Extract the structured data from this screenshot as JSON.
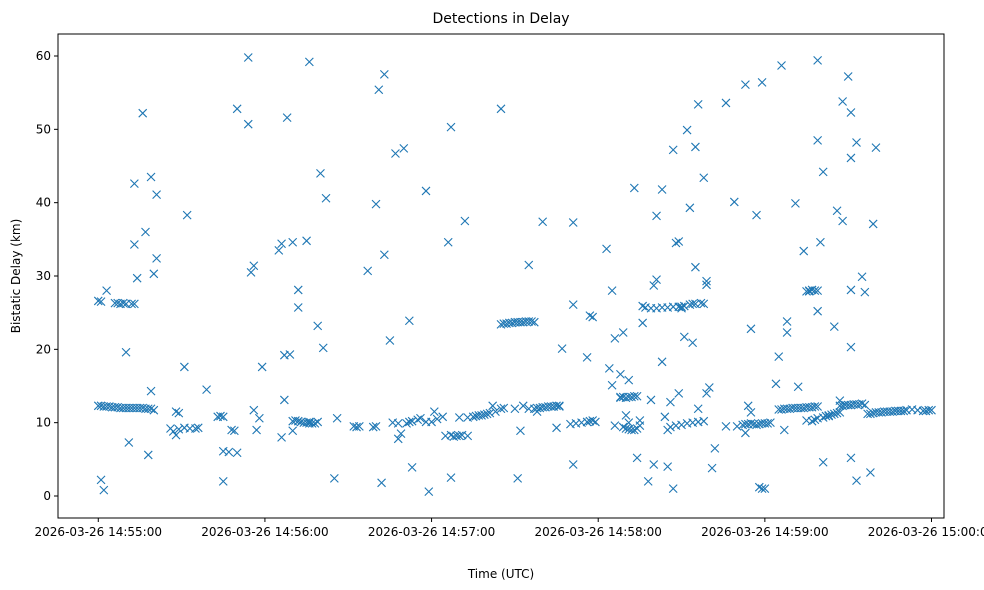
{
  "chart_data": {
    "type": "scatter",
    "title": "Detections in Delay",
    "xlabel": "Time (UTC)",
    "ylabel": "Bistatic Delay (km)",
    "marker": "x",
    "color": "#1f77b4",
    "grid": false,
    "x_unit": "seconds since 2026-03-26 14:55:00",
    "xlim": [
      -14.5,
      304.5
    ],
    "ylim": [
      -3,
      63
    ],
    "x_ticks": [
      {
        "value": 0,
        "label": "2026-03-26 14:55:00"
      },
      {
        "value": 60,
        "label": "2026-03-26 14:56:00"
      },
      {
        "value": 120,
        "label": "2026-03-26 14:57:00"
      },
      {
        "value": 180,
        "label": "2026-03-26 14:58:00"
      },
      {
        "value": 240,
        "label": "2026-03-26 14:59:00"
      },
      {
        "value": 300,
        "label": "2026-03-26 15:00:00"
      }
    ],
    "y_ticks": [
      {
        "value": 0,
        "label": "0"
      },
      {
        "value": 10,
        "label": "10"
      },
      {
        "value": 20,
        "label": "20"
      },
      {
        "value": 30,
        "label": "30"
      },
      {
        "value": 40,
        "label": "40"
      },
      {
        "value": 50,
        "label": "50"
      },
      {
        "value": 60,
        "label": "60"
      }
    ],
    "points": [
      [
        0,
        12.3
      ],
      [
        1,
        12.3
      ],
      [
        2,
        12.2
      ],
      [
        3,
        12.2
      ],
      [
        4,
        12.2
      ],
      [
        5,
        12.1
      ],
      [
        6,
        12.1
      ],
      [
        7,
        12.1
      ],
      [
        8,
        12.0
      ],
      [
        9,
        12.0
      ],
      [
        10,
        12.0
      ],
      [
        11,
        12.0
      ],
      [
        12,
        12.0
      ],
      [
        13,
        12.0
      ],
      [
        14,
        12.0
      ],
      [
        15,
        12.0
      ],
      [
        16,
        12.0
      ],
      [
        17,
        11.9
      ],
      [
        18,
        11.9
      ],
      [
        19,
        11.9
      ],
      [
        20,
        11.7
      ],
      [
        26,
        9.2
      ],
      [
        27,
        8.8
      ],
      [
        28,
        8.3
      ],
      [
        29,
        9.1
      ],
      [
        31,
        9.3
      ],
      [
        33,
        9.2
      ],
      [
        35,
        9.2
      ],
      [
        36,
        9.3
      ],
      [
        43,
        10.8
      ],
      [
        44,
        10.9
      ],
      [
        45,
        10.8
      ],
      [
        48,
        9.0
      ],
      [
        49,
        8.9
      ],
      [
        70,
        10.2
      ],
      [
        71,
        10.3
      ],
      [
        72,
        10.2
      ],
      [
        73,
        10.1
      ],
      [
        74,
        10.0
      ],
      [
        75,
        10.0
      ],
      [
        76,
        9.9
      ],
      [
        77,
        9.9
      ],
      [
        78,
        9.9
      ],
      [
        79,
        10.1
      ],
      [
        92,
        9.5
      ],
      [
        93,
        9.4
      ],
      [
        94,
        9.5
      ],
      [
        99,
        9.4
      ],
      [
        100,
        9.5
      ],
      [
        106,
        10.0
      ],
      [
        108,
        9.9
      ],
      [
        112,
        10.1
      ],
      [
        113,
        10.2
      ],
      [
        115,
        10.4
      ],
      [
        116,
        10.6
      ],
      [
        118,
        10.1
      ],
      [
        125,
        8.2
      ],
      [
        127,
        8.3
      ],
      [
        128,
        8.1
      ],
      [
        129,
        8.2
      ],
      [
        130,
        8.2
      ],
      [
        131,
        8.3
      ],
      [
        133,
        10.7
      ],
      [
        135,
        10.8
      ],
      [
        136,
        10.9
      ],
      [
        137,
        11.0
      ],
      [
        138,
        11.0
      ],
      [
        139,
        11.1
      ],
      [
        140,
        11.2
      ],
      [
        141,
        11.3
      ],
      [
        145,
        11.9
      ],
      [
        146,
        12.0
      ],
      [
        153,
        12.3
      ],
      [
        155,
        11.9
      ],
      [
        157,
        11.9
      ],
      [
        158,
        12.0
      ],
      [
        159,
        12.0
      ],
      [
        160,
        12.1
      ],
      [
        161,
        12.1
      ],
      [
        162,
        12.2
      ],
      [
        163,
        12.2
      ],
      [
        164,
        12.2
      ],
      [
        165,
        12.3
      ],
      [
        166,
        12.3
      ],
      [
        170,
        9.8
      ],
      [
        172,
        9.9
      ],
      [
        174,
        10.0
      ],
      [
        176,
        10.1
      ],
      [
        177,
        10.2
      ],
      [
        178,
        10.3
      ],
      [
        179,
        10.1
      ],
      [
        188,
        13.4
      ],
      [
        189,
        13.5
      ],
      [
        190,
        13.4
      ],
      [
        191,
        13.5
      ],
      [
        192,
        13.5
      ],
      [
        193,
        13.6
      ],
      [
        194,
        13.6
      ],
      [
        189,
        9.4
      ],
      [
        190,
        9.2
      ],
      [
        191,
        9.1
      ],
      [
        192,
        9.0
      ],
      [
        193,
        9.0
      ],
      [
        194,
        9.2
      ],
      [
        195,
        9.6
      ],
      [
        205,
        9.0
      ],
      [
        206,
        9.4
      ],
      [
        208,
        9.6
      ],
      [
        210,
        9.7
      ],
      [
        212,
        9.9
      ],
      [
        214,
        10.0
      ],
      [
        216,
        10.1
      ],
      [
        218,
        10.2
      ],
      [
        230,
        9.5
      ],
      [
        232,
        9.7
      ],
      [
        233,
        9.8
      ],
      [
        234,
        9.8
      ],
      [
        235,
        9.9
      ],
      [
        236,
        9.8
      ],
      [
        237,
        9.7
      ],
      [
        238,
        9.8
      ],
      [
        239,
        9.9
      ],
      [
        240,
        9.9
      ],
      [
        241,
        9.9
      ],
      [
        242,
        10.0
      ],
      [
        245,
        11.8
      ],
      [
        246,
        11.8
      ],
      [
        247,
        11.9
      ],
      [
        248,
        11.9
      ],
      [
        249,
        11.9
      ],
      [
        250,
        12.0
      ],
      [
        251,
        12.0
      ],
      [
        252,
        12.0
      ],
      [
        253,
        12.0
      ],
      [
        254,
        12.0
      ],
      [
        255,
        12.1
      ],
      [
        256,
        12.1
      ],
      [
        257,
        12.1
      ],
      [
        258,
        12.2
      ],
      [
        259,
        12.2
      ],
      [
        257,
        10.2
      ],
      [
        258,
        10.4
      ],
      [
        259,
        10.6
      ],
      [
        261,
        10.7
      ],
      [
        262,
        10.9
      ],
      [
        263,
        11.0
      ],
      [
        264,
        11.1
      ],
      [
        265,
        11.2
      ],
      [
        266,
        11.3
      ],
      [
        267,
        11.4
      ],
      [
        267,
        12.3
      ],
      [
        268,
        12.3
      ],
      [
        269,
        12.4
      ],
      [
        270,
        12.4
      ],
      [
        271,
        12.4
      ],
      [
        272,
        12.5
      ],
      [
        273,
        12.5
      ],
      [
        274,
        12.5
      ],
      [
        275,
        12.6
      ],
      [
        277,
        11.2
      ],
      [
        278,
        11.2
      ],
      [
        279,
        11.3
      ],
      [
        280,
        11.4
      ],
      [
        281,
        11.4
      ],
      [
        282,
        11.4
      ],
      [
        283,
        11.5
      ],
      [
        284,
        11.5
      ],
      [
        285,
        11.5
      ],
      [
        286,
        11.5
      ],
      [
        287,
        11.6
      ],
      [
        288,
        11.6
      ],
      [
        289,
        11.6
      ],
      [
        290,
        11.6
      ],
      [
        291,
        11.7
      ],
      [
        293,
        11.8
      ],
      [
        295,
        11.7
      ],
      [
        297,
        11.6
      ],
      [
        298,
        11.6
      ],
      [
        299,
        11.7
      ],
      [
        300,
        11.7
      ],
      [
        0,
        26.6
      ],
      [
        1,
        26.5
      ],
      [
        6,
        26.3
      ],
      [
        7,
        26.3
      ],
      [
        8,
        26.2
      ],
      [
        9,
        26.3
      ],
      [
        10,
        26.2
      ],
      [
        12,
        26.2
      ],
      [
        13,
        26.2
      ],
      [
        145,
        23.4
      ],
      [
        146,
        23.5
      ],
      [
        147,
        23.5
      ],
      [
        148,
        23.6
      ],
      [
        149,
        23.6
      ],
      [
        150,
        23.7
      ],
      [
        151,
        23.7
      ],
      [
        152,
        23.7
      ],
      [
        153,
        23.7
      ],
      [
        154,
        23.8
      ],
      [
        155,
        23.8
      ],
      [
        156,
        23.8
      ],
      [
        157,
        23.7
      ],
      [
        196,
        25.9
      ],
      [
        197,
        25.7
      ],
      [
        199,
        25.6
      ],
      [
        201,
        25.6
      ],
      [
        203,
        25.7
      ],
      [
        205,
        25.7
      ],
      [
        207,
        25.8
      ],
      [
        209,
        25.8
      ],
      [
        210,
        25.8
      ],
      [
        211,
        25.9
      ],
      [
        213,
        26.1
      ],
      [
        215,
        26.2
      ],
      [
        217,
        26.3
      ],
      [
        218,
        26.2
      ],
      [
        255,
        27.9
      ],
      [
        256,
        28.0
      ],
      [
        257,
        28.1
      ],
      [
        258,
        28.0
      ],
      [
        259,
        28.0
      ],
      [
        1,
        2.2
      ],
      [
        2,
        0.8
      ],
      [
        3,
        28.0
      ],
      [
        11,
        7.3
      ],
      [
        10,
        19.6
      ],
      [
        13,
        42.6
      ],
      [
        14,
        29.7
      ],
      [
        13,
        34.3
      ],
      [
        16,
        52.2
      ],
      [
        17,
        36.0
      ],
      [
        18,
        5.6
      ],
      [
        19,
        43.5
      ],
      [
        19,
        14.3
      ],
      [
        20,
        30.3
      ],
      [
        21,
        41.1
      ],
      [
        21,
        32.4
      ],
      [
        28,
        11.5
      ],
      [
        29,
        11.3
      ],
      [
        31,
        17.6
      ],
      [
        32,
        38.3
      ],
      [
        39,
        14.5
      ],
      [
        45,
        2.0
      ],
      [
        45,
        6.1
      ],
      [
        47,
        6.0
      ],
      [
        50,
        5.9
      ],
      [
        50,
        52.8
      ],
      [
        54,
        59.8
      ],
      [
        54,
        50.7
      ],
      [
        55,
        30.5
      ],
      [
        56,
        31.4
      ],
      [
        57,
        9.0
      ],
      [
        58,
        10.6
      ],
      [
        59,
        17.6
      ],
      [
        56,
        11.7
      ],
      [
        65,
        33.5
      ],
      [
        66,
        34.4
      ],
      [
        66,
        8.0
      ],
      [
        67,
        19.2
      ],
      [
        67,
        13.1
      ],
      [
        68,
        51.6
      ],
      [
        69,
        19.3
      ],
      [
        70,
        34.6
      ],
      [
        70,
        8.9
      ],
      [
        72,
        28.1
      ],
      [
        72,
        25.7
      ],
      [
        75,
        34.8
      ],
      [
        76,
        59.2
      ],
      [
        76,
        10.1
      ],
      [
        79,
        23.2
      ],
      [
        80,
        44.0
      ],
      [
        81,
        20.2
      ],
      [
        82,
        40.6
      ],
      [
        85,
        2.4
      ],
      [
        86,
        10.6
      ],
      [
        97,
        30.7
      ],
      [
        100,
        39.8
      ],
      [
        101,
        55.4
      ],
      [
        102,
        1.8
      ],
      [
        103,
        57.5
      ],
      [
        103,
        32.9
      ],
      [
        105,
        21.2
      ],
      [
        107,
        46.7
      ],
      [
        108,
        7.8
      ],
      [
        109,
        8.5
      ],
      [
        110,
        47.4
      ],
      [
        111,
        9.9
      ],
      [
        112,
        23.9
      ],
      [
        113,
        3.9
      ],
      [
        118,
        41.6
      ],
      [
        119,
        0.6
      ],
      [
        120,
        10.1
      ],
      [
        121,
        11.5
      ],
      [
        122,
        10.5
      ],
      [
        124,
        10.8
      ],
      [
        126,
        34.6
      ],
      [
        127,
        50.3
      ],
      [
        127,
        2.5
      ],
      [
        130,
        10.7
      ],
      [
        132,
        37.5
      ],
      [
        133,
        8.2
      ],
      [
        142,
        12.3
      ],
      [
        143,
        11.5
      ],
      [
        145,
        52.8
      ],
      [
        150,
        11.9
      ],
      [
        151,
        2.4
      ],
      [
        152,
        8.9
      ],
      [
        155,
        31.5
      ],
      [
        158,
        11.5
      ],
      [
        160,
        37.4
      ],
      [
        165,
        9.3
      ],
      [
        166,
        12.2
      ],
      [
        167,
        20.1
      ],
      [
        171,
        26.1
      ],
      [
        171,
        4.3
      ],
      [
        171,
        37.3
      ],
      [
        176,
        18.9
      ],
      [
        177,
        24.6
      ],
      [
        178,
        24.4
      ],
      [
        183,
        33.7
      ],
      [
        184,
        17.4
      ],
      [
        185,
        28.0
      ],
      [
        185,
        15.1
      ],
      [
        186,
        21.5
      ],
      [
        186,
        9.6
      ],
      [
        188,
        13.5
      ],
      [
        188,
        16.6
      ],
      [
        189,
        22.3
      ],
      [
        190,
        11.0
      ],
      [
        191,
        15.8
      ],
      [
        191,
        10.0
      ],
      [
        193,
        42.0
      ],
      [
        194,
        5.2
      ],
      [
        195,
        10.3
      ],
      [
        196,
        23.6
      ],
      [
        198,
        2.0
      ],
      [
        199,
        13.1
      ],
      [
        200,
        4.3
      ],
      [
        200,
        28.7
      ],
      [
        201,
        29.5
      ],
      [
        201,
        38.2
      ],
      [
        203,
        41.8
      ],
      [
        203,
        18.3
      ],
      [
        204,
        10.8
      ],
      [
        205,
        4.0
      ],
      [
        206,
        12.8
      ],
      [
        207,
        47.2
      ],
      [
        207,
        1.0
      ],
      [
        208,
        34.5
      ],
      [
        209,
        34.7
      ],
      [
        209,
        14.0
      ],
      [
        210,
        25.6
      ],
      [
        211,
        21.7
      ],
      [
        212,
        49.9
      ],
      [
        213,
        39.3
      ],
      [
        214,
        20.9
      ],
      [
        214,
        26.2
      ],
      [
        215,
        47.6
      ],
      [
        215,
        31.2
      ],
      [
        216,
        53.4
      ],
      [
        216,
        11.9
      ],
      [
        218,
        43.4
      ],
      [
        219,
        29.3
      ],
      [
        219,
        28.8
      ],
      [
        219,
        14.0
      ],
      [
        220,
        14.8
      ],
      [
        221,
        3.8
      ],
      [
        222,
        6.5
      ],
      [
        226,
        53.6
      ],
      [
        226,
        9.5
      ],
      [
        229,
        40.1
      ],
      [
        233,
        56.1
      ],
      [
        233,
        8.6
      ],
      [
        234,
        12.3
      ],
      [
        235,
        22.8
      ],
      [
        235,
        11.4
      ],
      [
        237,
        38.3
      ],
      [
        239,
        56.4
      ],
      [
        238,
        1.2
      ],
      [
        239,
        1.0
      ],
      [
        240,
        1.0
      ],
      [
        244,
        15.3
      ],
      [
        245,
        19.0
      ],
      [
        246,
        58.7
      ],
      [
        247,
        9.0
      ],
      [
        248,
        23.8
      ],
      [
        248,
        22.3
      ],
      [
        251,
        39.9
      ],
      [
        252,
        14.9
      ],
      [
        254,
        33.4
      ],
      [
        255,
        10.3
      ],
      [
        256,
        27.9
      ],
      [
        259,
        59.4
      ],
      [
        259,
        48.5
      ],
      [
        259,
        25.2
      ],
      [
        260,
        34.6
      ],
      [
        261,
        44.2
      ],
      [
        261,
        4.6
      ],
      [
        263,
        10.9
      ],
      [
        265,
        23.1
      ],
      [
        266,
        38.9
      ],
      [
        267,
        13.0
      ],
      [
        268,
        53.8
      ],
      [
        268,
        37.5
      ],
      [
        270,
        57.2
      ],
      [
        271,
        52.3
      ],
      [
        271,
        46.1
      ],
      [
        271,
        28.1
      ],
      [
        271,
        20.3
      ],
      [
        271,
        5.2
      ],
      [
        273,
        2.1
      ],
      [
        273,
        48.2
      ],
      [
        275,
        29.9
      ],
      [
        276,
        27.8
      ],
      [
        276,
        12.4
      ],
      [
        278,
        3.2
      ],
      [
        279,
        37.1
      ],
      [
        280,
        47.5
      ]
    ]
  }
}
